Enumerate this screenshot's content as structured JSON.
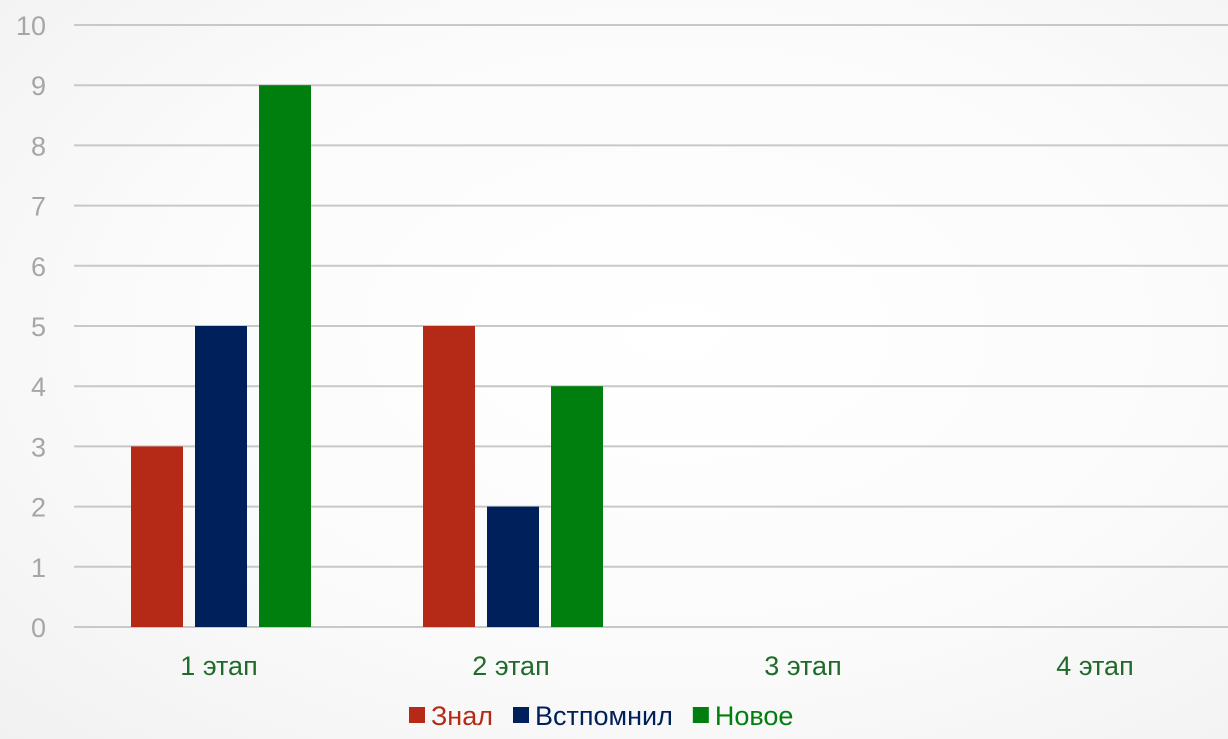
{
  "chart_data": {
    "type": "bar",
    "title": "",
    "xlabel": "",
    "ylabel": "",
    "categories": [
      "1 этап",
      "2 этап",
      "3 этап",
      "4 этап"
    ],
    "series": [
      {
        "name": "Знал",
        "color": "#b52a17",
        "values": [
          3,
          5,
          null,
          null
        ]
      },
      {
        "name": "Встпомнил",
        "color": "#00205b",
        "values": [
          5,
          2,
          null,
          null
        ]
      },
      {
        "name": "Новое",
        "color": "#007f0e",
        "values": [
          9,
          4,
          null,
          null
        ]
      }
    ],
    "ylim": [
      0,
      10
    ],
    "yticks": [
      0,
      1,
      2,
      3,
      4,
      5,
      6,
      7,
      8,
      9,
      10
    ],
    "grid": true,
    "legend_position": "bottom",
    "colors": {
      "gridline": "#c8c8c8",
      "tick_label": "#a6a6a6",
      "category_label": "#1f6b2a"
    }
  }
}
